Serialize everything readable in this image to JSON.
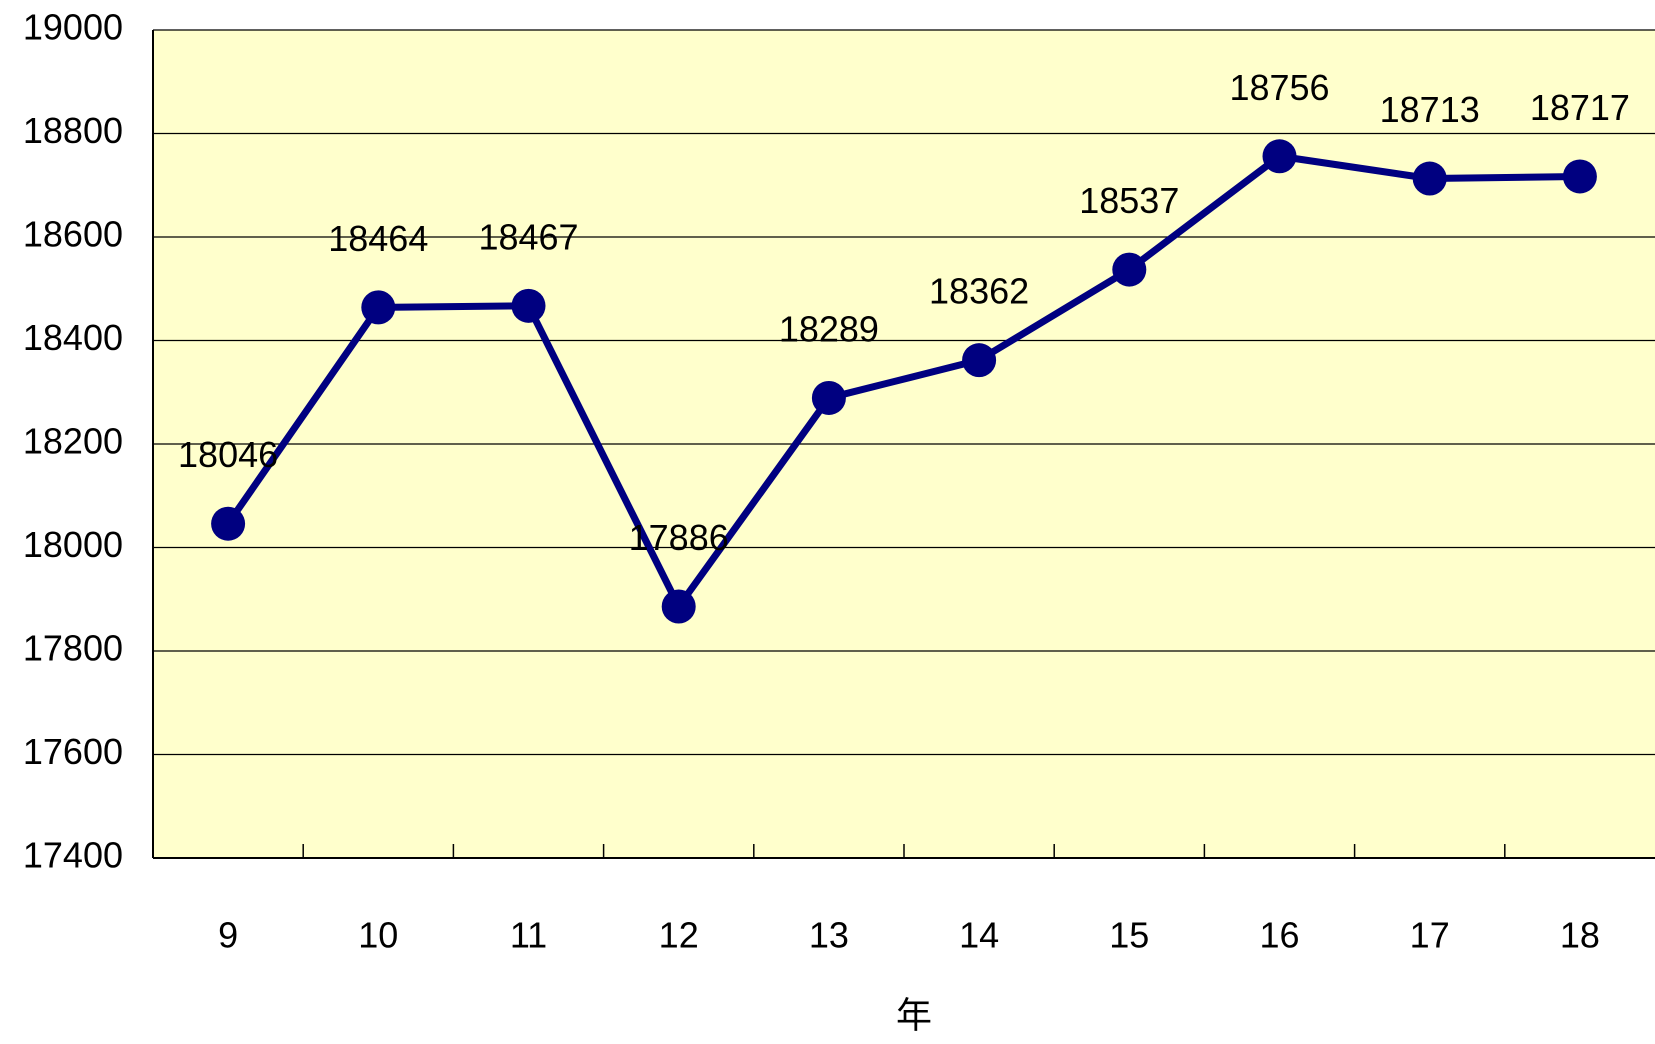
{
  "chart_data": {
    "type": "line",
    "x_label": "年",
    "categories": [
      "9",
      "10",
      "11",
      "12",
      "13",
      "14",
      "15",
      "16",
      "17",
      "18"
    ],
    "series": [
      {
        "color": "#000080",
        "values": [
          18046,
          18464,
          18467,
          17886,
          18289,
          18362,
          18537,
          18756,
          18713,
          18717
        ]
      }
    ],
    "ylim": [
      17400,
      19000
    ],
    "yticks": [
      17400,
      17600,
      17800,
      18000,
      18200,
      18400,
      18600,
      18800,
      19000
    ],
    "grid": true,
    "background": "#ffffcc"
  }
}
